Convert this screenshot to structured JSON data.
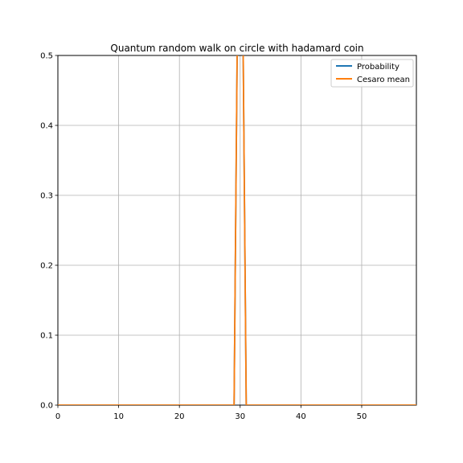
{
  "chart_data": {
    "type": "line",
    "title": "Quantum random walk on circle with hadamard coin",
    "xlabel": "",
    "ylabel": "",
    "xlim": [
      0,
      59
    ],
    "ylim": [
      0,
      0.5
    ],
    "xticks": [
      0,
      10,
      20,
      30,
      40,
      50
    ],
    "yticks": [
      0.0,
      0.1,
      0.2,
      0.3,
      0.4,
      0.5
    ],
    "xtick_labels": [
      "0",
      "10",
      "20",
      "30",
      "40",
      "50"
    ],
    "ytick_labels": [
      "0.0",
      "0.1",
      "0.2",
      "0.3",
      "0.4",
      "0.5"
    ],
    "grid": true,
    "legend_position": "top-right",
    "x": [
      0,
      1,
      2,
      3,
      4,
      5,
      6,
      7,
      8,
      9,
      10,
      11,
      12,
      13,
      14,
      15,
      16,
      17,
      18,
      19,
      20,
      21,
      22,
      23,
      24,
      25,
      26,
      27,
      28,
      29,
      30,
      31,
      32,
      33,
      34,
      35,
      36,
      37,
      38,
      39,
      40,
      41,
      42,
      43,
      44,
      45,
      46,
      47,
      48,
      49,
      50,
      51,
      52,
      53,
      54,
      55,
      56,
      57,
      58,
      59
    ],
    "series": [
      {
        "name": "Probability",
        "color": "#1f77b4",
        "values": [
          0,
          0,
          0,
          0,
          0,
          0,
          0,
          0,
          0,
          0,
          0,
          0,
          0,
          0,
          0,
          0,
          0,
          0,
          0,
          0,
          0,
          0,
          0,
          0,
          0,
          0,
          0,
          0,
          0,
          0,
          1,
          0,
          0,
          0,
          0,
          0,
          0,
          0,
          0,
          0,
          0,
          0,
          0,
          0,
          0,
          0,
          0,
          0,
          0,
          0,
          0,
          0,
          0,
          0,
          0,
          0,
          0,
          0,
          0,
          0
        ]
      },
      {
        "name": "Cesaro mean",
        "color": "#ff7f0e",
        "values": [
          0,
          0,
          0,
          0,
          0,
          0,
          0,
          0,
          0,
          0,
          0,
          0,
          0,
          0,
          0,
          0,
          0,
          0,
          0,
          0,
          0,
          0,
          0,
          0,
          0,
          0,
          0,
          0,
          0,
          0,
          1,
          0,
          0,
          0,
          0,
          0,
          0,
          0,
          0,
          0,
          0,
          0,
          0,
          0,
          0,
          0,
          0,
          0,
          0,
          0,
          0,
          0,
          0,
          0,
          0,
          0,
          0,
          0,
          0,
          0
        ]
      }
    ]
  }
}
